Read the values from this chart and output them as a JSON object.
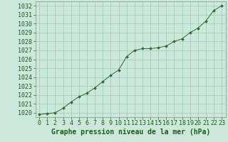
{
  "x": [
    0,
    1,
    2,
    3,
    4,
    5,
    6,
    7,
    8,
    9,
    10,
    11,
    12,
    13,
    14,
    15,
    16,
    17,
    18,
    19,
    20,
    21,
    22,
    23
  ],
  "y": [
    1019.8,
    1019.9,
    1020.0,
    1020.5,
    1021.2,
    1021.8,
    1022.2,
    1022.8,
    1023.5,
    1024.2,
    1024.8,
    1026.3,
    1027.0,
    1027.2,
    1027.2,
    1027.3,
    1027.5,
    1028.0,
    1028.3,
    1029.0,
    1029.5,
    1030.3,
    1031.5,
    1032.0
  ],
  "ylim": [
    1019.5,
    1032.5
  ],
  "yticks": [
    1020,
    1021,
    1022,
    1023,
    1024,
    1025,
    1026,
    1027,
    1028,
    1029,
    1030,
    1031,
    1032
  ],
  "xlim": [
    -0.5,
    23.5
  ],
  "xticks": [
    0,
    1,
    2,
    3,
    4,
    5,
    6,
    7,
    8,
    9,
    10,
    11,
    12,
    13,
    14,
    15,
    16,
    17,
    18,
    19,
    20,
    21,
    22,
    23
  ],
  "line_color": "#2d6a2d",
  "marker_color": "#2d6a2d",
  "bg_color": "#cce8da",
  "grid_color": "#99ccb8",
  "xlabel": "Graphe pression niveau de la mer (hPa)",
  "xlabel_color": "#1a5c1a",
  "tick_color": "#1a5c1a",
  "xlabel_fontsize": 7,
  "tick_fontsize": 6
}
